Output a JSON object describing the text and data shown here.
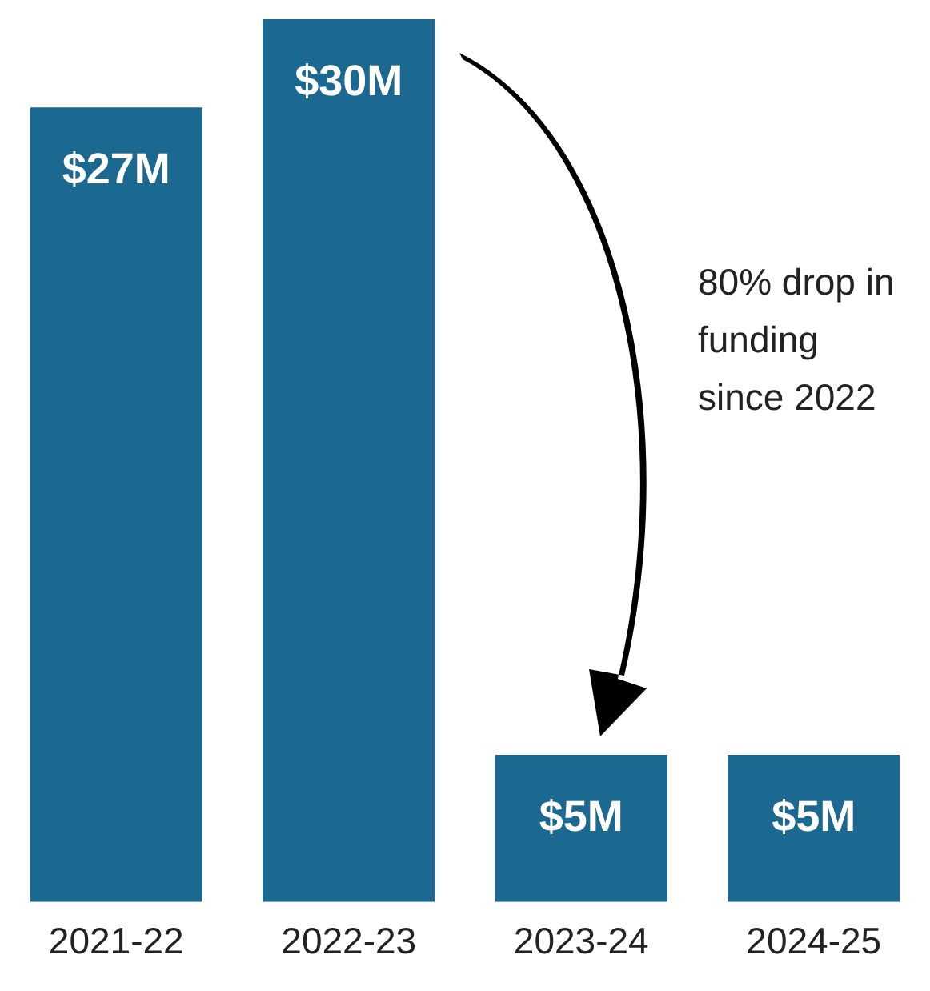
{
  "chart_data": {
    "type": "bar",
    "categories": [
      "2021-22",
      "2022-23",
      "2023-24",
      "2024-25"
    ],
    "values": [
      27,
      30,
      5,
      5
    ],
    "value_labels": [
      "$27M",
      "$30M",
      "$5M",
      "$5M"
    ],
    "color": "#1b6891",
    "tick_labels": "x",
    "annotations": [
      "80% drop in funding since 2022"
    ]
  }
}
